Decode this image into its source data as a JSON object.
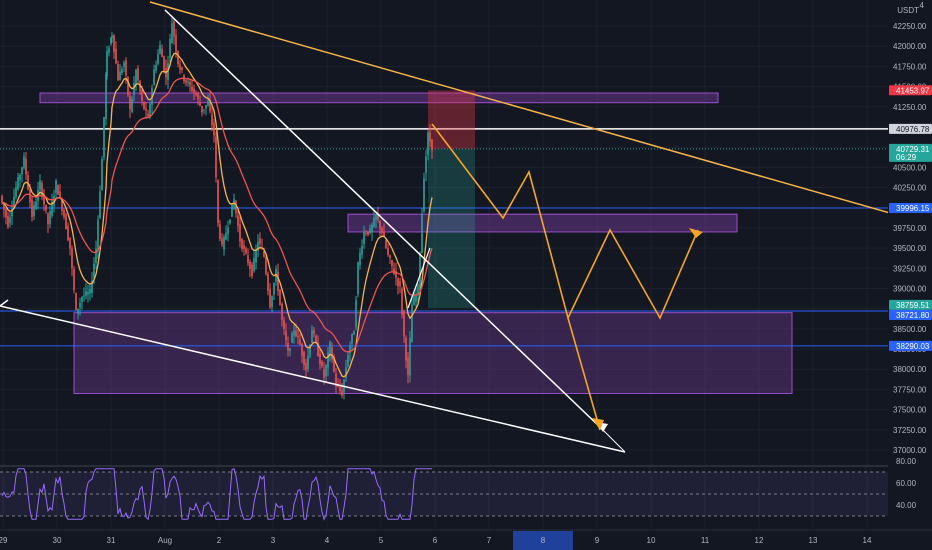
{
  "header": {
    "currency": "USDT",
    "menu_glyph": "4"
  },
  "price_axis": {
    "ticks": [
      "42250.00",
      "42000.00",
      "41750.00",
      "41500.00",
      "41250.00",
      "41000.00",
      "40750.00",
      "40500.00",
      "40250.00",
      "40000.00",
      "39750.00",
      "39500.00",
      "39250.00",
      "39000.00",
      "38750.00",
      "38500.00",
      "38250.00",
      "38000.00",
      "37750.00",
      "37500.00",
      "37250.00",
      "37000.00"
    ],
    "ticks_partial": [
      "41500.00",
      "40750.00"
    ],
    "badges": [
      {
        "name": "stop-level",
        "text": "41453.97",
        "color": "#f23645"
      },
      {
        "name": "last-price",
        "text": "40729.31",
        "sub": "06:29",
        "color": "#26a69a"
      },
      {
        "name": "resistance-line",
        "text": "40976.78",
        "color": "#d1d4dc"
      },
      {
        "name": "level-39996",
        "text": "39996.15",
        "color": "#2962ff"
      },
      {
        "name": "level-38759",
        "text": "38759.51",
        "color": "#26a69a"
      },
      {
        "name": "level-38721",
        "text": "38721.80",
        "color": "#2962ff"
      },
      {
        "name": "level-38290",
        "text": "38290.03",
        "color": "#2962ff"
      }
    ]
  },
  "time_axis": {
    "labels": [
      "29",
      "30",
      "31",
      "Aug",
      "2",
      "3",
      "4",
      "5",
      "6",
      "7",
      "8",
      "9",
      "10",
      "11",
      "12",
      "13",
      "14"
    ],
    "highlight": "8"
  },
  "rsi_axis": {
    "ticks": [
      "80.00",
      "60.00",
      "40.00"
    ]
  },
  "chart_data": {
    "type": "candlestick",
    "symbol_currency": "USDT",
    "x_labels": [
      "29",
      "30",
      "31",
      "Aug",
      "2",
      "3",
      "4",
      "5",
      "6",
      "7",
      "8",
      "9",
      "10",
      "11",
      "12",
      "13",
      "14"
    ],
    "price_axis_range": [
      36900,
      42500
    ],
    "horizontal_levels": [
      40976.78,
      39996.15,
      38721.8,
      38290.03
    ],
    "current_price": 40729.31,
    "countdown": "06:29",
    "position": {
      "entry": 40729.31,
      "stop": 41453.97,
      "target": 38759.51
    },
    "supply_zones": [
      [
        41300,
        41420
      ],
      [
        39700,
        39920
      ]
    ],
    "demand_zone": [
      37700,
      38700
    ],
    "rsi_levels": [
      70,
      50,
      30
    ],
    "rsi_axis_labels": [
      80,
      60,
      40
    ],
    "colors": {
      "up": "#26a69a",
      "down": "#ef5350",
      "ema_fast": "#f5b44a",
      "ema_slow": "#ef5350",
      "zones": "#7b3fa0",
      "forecast": "#f5a623",
      "rsi": "#9a6bff"
    }
  }
}
